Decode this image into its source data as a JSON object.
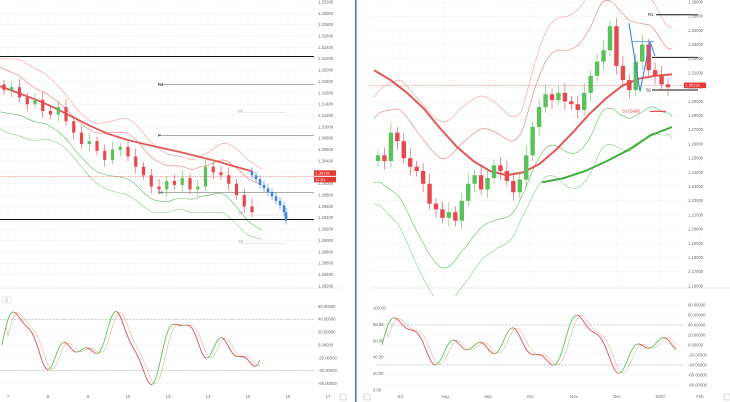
{
  "left_chart": {
    "price_axis": [
      "1.33200",
      "1.33000",
      "1.32800",
      "1.32600",
      "1.32400",
      "1.32200",
      "1.32000",
      "1.31800",
      "1.31600",
      "1.31400",
      "1.31200",
      "1.31000",
      "1.30800",
      "1.30600",
      "1.30400",
      "1.30200",
      "1.30000",
      "1.29800",
      "1.29600",
      "1.29400",
      "1.29200",
      "1.29000",
      "1.28800",
      "1.28600",
      "1.28400",
      "1.28200"
    ],
    "time_axis": [
      "7",
      "8",
      "9",
      "10",
      "13",
      "14",
      "15",
      "16",
      "17"
    ],
    "levels": {
      "r1": "R1",
      "p": "P",
      "s1": "S1",
      "r2": "R2",
      "s2": "S2",
      "s3": "S3"
    },
    "price_tag": "1.30131",
    "time_tag": "11:51",
    "osc_axis": [
      "60.00000",
      "40.00000",
      "20.00000",
      "0.00000",
      "-20.00000",
      "-40.00000",
      "-60.00000"
    ],
    "osc_icon": "2"
  },
  "right_chart": {
    "price_axis": [
      "1.36000",
      "1.35000",
      "1.34000",
      "1.33000",
      "1.32000",
      "1.31000",
      "1.30000",
      "1.29000",
      "1.28000",
      "1.27000",
      "1.26000",
      "1.25000",
      "1.24000",
      "1.23000",
      "1.22000",
      "1.21000",
      "1.20000",
      "1.19000",
      "1.18000",
      "1.17000",
      "1.16000"
    ],
    "time_axis": [
      "Jul",
      "Aug",
      "Sep",
      "Oct",
      "Nov",
      "Dec",
      "2020",
      "Feb"
    ],
    "levels": {
      "r1": "R1",
      "p": "P",
      "s1": "S1",
      "s2": "S2 (Daily)"
    },
    "price_tag": "1.30131",
    "osc_axis_left": [
      "100.00",
      "80.00",
      "60.00",
      "40.00",
      "20.00",
      "0.00"
    ],
    "osc_axis_right": [
      "80.00000",
      "60.00000",
      "40.00000",
      "20.00000",
      "0.00000",
      "-20.00000",
      "-40.00000",
      "-60.00000",
      "-80.00000"
    ]
  },
  "chart_data": [
    {
      "type": "candlestick",
      "timeframe_hint": "hourly",
      "x_ticks": [
        "7",
        "8",
        "9",
        "10",
        "13",
        "14",
        "15",
        "16",
        "17"
      ],
      "ylim": [
        1.282,
        1.332
      ],
      "price_now": 1.30131,
      "pivot_levels": {
        "R1": 1.3175,
        "P": 1.3085,
        "S1": 1.2985,
        "R2": 1.3125,
        "S2": 1.2945,
        "S3": 1.2895
      },
      "horizontal_lines": [
        1.3224,
        1.2937
      ],
      "ema_trend": [
        1.3172,
        1.316,
        1.3148,
        1.3134,
        1.3118,
        1.3102,
        1.3088,
        1.3078,
        1.307,
        1.3063,
        1.3056,
        1.3048,
        1.304,
        1.3031,
        1.3022
      ],
      "closes": [
        1.3165,
        1.317,
        1.3152,
        1.314,
        1.3148,
        1.3128,
        1.3122,
        1.3135,
        1.311,
        1.309,
        1.307,
        1.3075,
        1.3058,
        1.3042,
        1.306,
        1.3065,
        1.3048,
        1.303,
        1.3015,
        1.2995,
        1.299,
        1.3005,
        1.2998,
        1.301,
        1.299,
        1.2995,
        1.303,
        1.302,
        1.3015,
        1.3,
        1.298,
        1.296,
        1.295
      ]
    },
    {
      "type": "candlestick",
      "timeframe_hint": "daily",
      "x_ticks": [
        "Jul",
        "Aug",
        "Sep",
        "Oct",
        "Nov",
        "Dec",
        "2020",
        "Feb"
      ],
      "ylim": [
        1.16,
        1.36
      ],
      "price_now": 1.30131,
      "pivot_levels": {
        "R1": 1.351,
        "P": 1.321,
        "S1": 1.298,
        "S2 (Daily)": 1.283
      },
      "ema_red": [
        1.312,
        1.305,
        1.296,
        1.285,
        1.271,
        1.258,
        1.248,
        1.241,
        1.238,
        1.24,
        1.246,
        1.256,
        1.268,
        1.281,
        1.292,
        1.301,
        1.306,
        1.308,
        1.309
      ],
      "ema_green": [
        1.233,
        1.236,
        1.241,
        1.248,
        1.256,
        1.266,
        1.272
      ],
      "closes": [
        1.252,
        1.248,
        1.268,
        1.262,
        1.25,
        1.244,
        1.241,
        1.232,
        1.218,
        1.214,
        1.208,
        1.212,
        1.206,
        1.22,
        1.232,
        1.238,
        1.228,
        1.236,
        1.245,
        1.241,
        1.234,
        1.226,
        1.235,
        1.252,
        1.272,
        1.286,
        1.295,
        1.291,
        1.296,
        1.29,
        1.288,
        1.284,
        1.296,
        1.308,
        1.318,
        1.326,
        1.343,
        1.315,
        1.305,
        1.298,
        1.318,
        1.33,
        1.312,
        1.308,
        1.302,
        1.3
      ]
    }
  ]
}
